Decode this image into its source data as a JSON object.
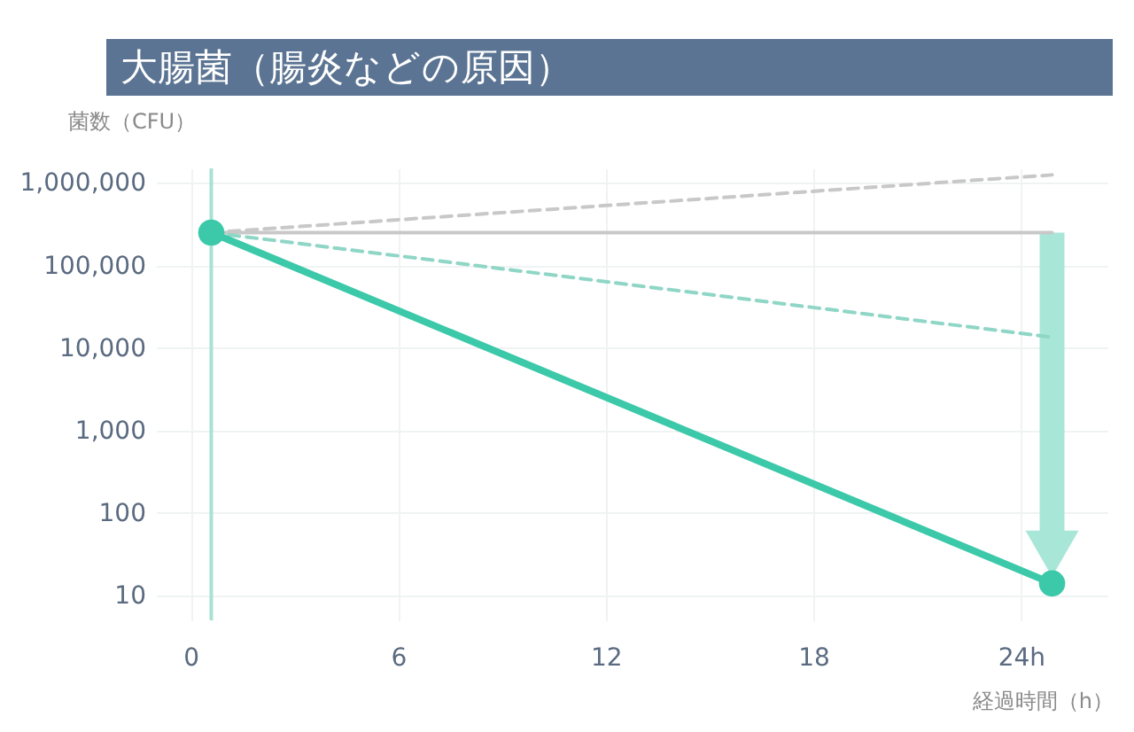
{
  "chart_data": {
    "type": "line",
    "title": "大腸菌（腸炎などの原因）",
    "xlabel": "経過時間（h）",
    "ylabel": "菌数（CFU）",
    "log": "y",
    "grid": true,
    "x": [
      0.6,
      24.9
    ],
    "xlim": [
      -1,
      26.5
    ],
    "xticks": [
      0,
      6,
      12,
      18,
      {
        "value": 24,
        "label": "24h"
      }
    ],
    "ylim": [
      5,
      1500000
    ],
    "yticks": [
      10,
      100,
      {
        "value": 1000,
        "label": "1,000"
      },
      {
        "value": 10000,
        "label": "10,000"
      },
      {
        "value": 100000,
        "label": "100,000"
      },
      {
        "value": 1000000,
        "label": "1,000,000"
      }
    ],
    "ref_lines": [
      {
        "axis": "x",
        "value": 0.6,
        "color": "#a8e2d4"
      }
    ],
    "series": [
      {
        "values": [
          250000,
          1250000
        ],
        "color": "#c8c8c8",
        "line_style": "dashed",
        "marker": "none"
      },
      {
        "values": [
          250000,
          250000
        ],
        "color": "#c8c8c8",
        "line_style": "solid",
        "marker": "none"
      },
      {
        "values": [
          250000,
          13500
        ],
        "color": "#8fd6c6",
        "line_style": "dashed",
        "marker": "none"
      },
      {
        "values": [
          250000,
          14
        ],
        "color": "#3cc9a9",
        "line_style": "solid",
        "marker": "circle"
      }
    ]
  }
}
